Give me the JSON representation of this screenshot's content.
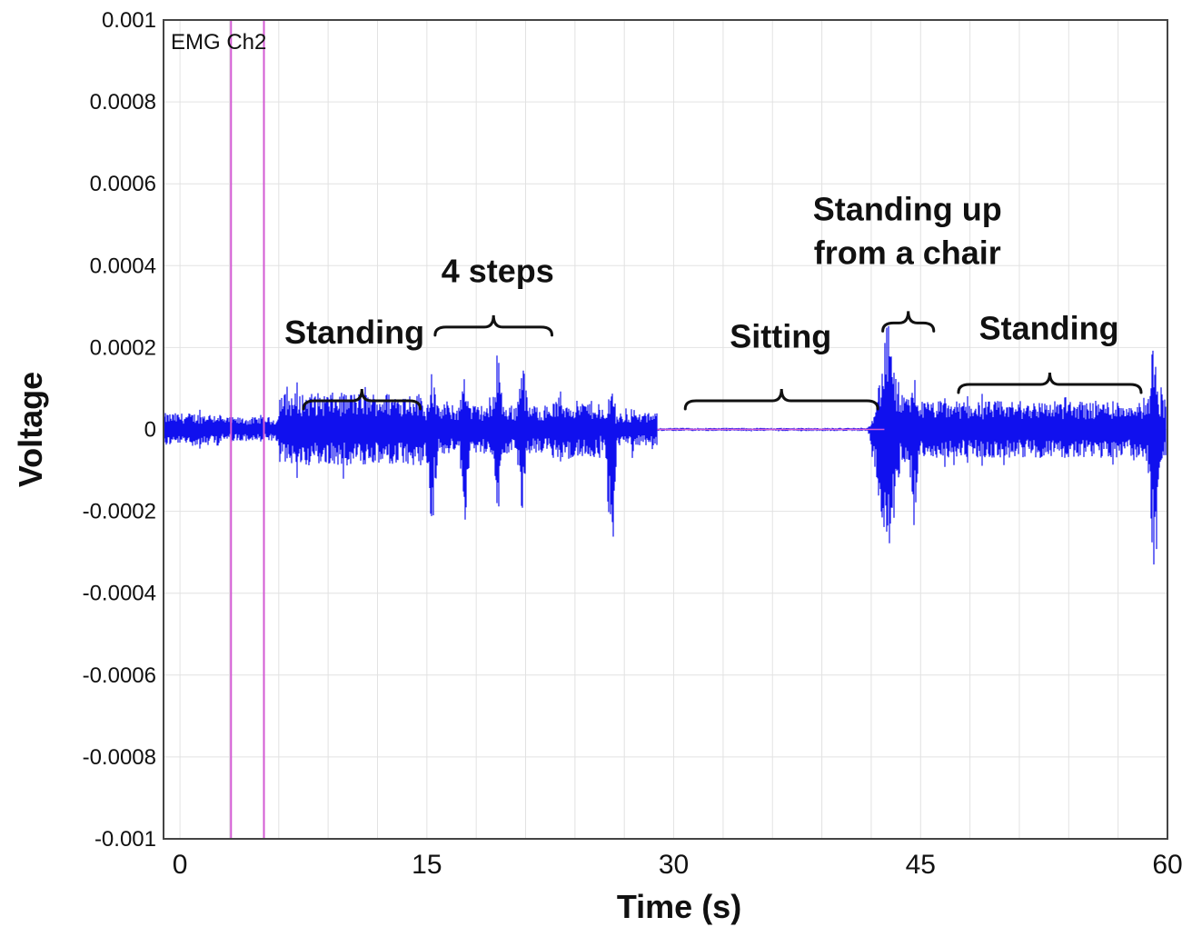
{
  "chart_data": {
    "type": "line",
    "title": "",
    "xlabel": "Time (s)",
    "ylabel": "Voltage",
    "channel_label": "EMG Ch2",
    "xlim": [
      -1,
      60
    ],
    "ylim": [
      -0.001,
      0.001
    ],
    "x_ticks": [
      {
        "value": 0,
        "label": "0"
      },
      {
        "value": 15,
        "label": "15"
      },
      {
        "value": 30,
        "label": "30"
      },
      {
        "value": 45,
        "label": "45"
      },
      {
        "value": 60,
        "label": "60"
      }
    ],
    "y_ticks": [
      {
        "value": 0.001,
        "label": "0.001"
      },
      {
        "value": 0.0008,
        "label": "0.0008"
      },
      {
        "value": 0.0006,
        "label": "0.0006"
      },
      {
        "value": 0.0004,
        "label": "0.0004"
      },
      {
        "value": 0.0002,
        "label": "0.0002"
      },
      {
        "value": 0,
        "label": "0"
      },
      {
        "value": -0.0002,
        "label": "-0.0002"
      },
      {
        "value": -0.0004,
        "label": "-0.0004"
      },
      {
        "value": -0.0006,
        "label": "-0.0006"
      },
      {
        "value": -0.0008,
        "label": "-0.0008"
      },
      {
        "value": -0.001,
        "label": "-0.001"
      }
    ],
    "grid": true,
    "x_grid_step": 3,
    "series": [
      {
        "color": "#1010ee",
        "segments": [
          {
            "x_start": -1,
            "x_end": 2.5,
            "amplitude": 4e-05
          },
          {
            "x_start": 2.5,
            "x_end": 6.0,
            "amplitude": 3e-05
          },
          {
            "x_start": 6.0,
            "x_end": 14.8,
            "amplitude": 9e-05
          },
          {
            "x_start": 14.8,
            "x_end": 22.5,
            "amplitude": 6e-05
          },
          {
            "x_start": 22.5,
            "x_end": 25.5,
            "amplitude": 7e-05
          },
          {
            "x_start": 25.5,
            "x_end": 29.0,
            "amplitude": 4e-05
          },
          {
            "x_start": 29.0,
            "x_end": 42.8,
            "amplitude": 4e-06
          },
          {
            "x_start": 42.8,
            "x_end": 45.0,
            "amplitude": 8e-05
          },
          {
            "x_start": 45.0,
            "x_end": 58.5,
            "amplitude": 7e-05
          },
          {
            "x_start": 58.5,
            "x_end": 60.0,
            "amplitude": 8e-05
          }
        ],
        "bursts": [
          {
            "x": 15.3,
            "width": 0.6,
            "peak_pos": 0.00018,
            "peak_neg": -0.0003
          },
          {
            "x": 17.3,
            "width": 0.6,
            "peak_pos": 0.00018,
            "peak_neg": -0.00025
          },
          {
            "x": 19.3,
            "width": 0.6,
            "peak_pos": 0.00023,
            "peak_neg": -0.00022
          },
          {
            "x": 20.8,
            "width": 0.6,
            "peak_pos": 0.00022,
            "peak_neg": -0.00027
          },
          {
            "x": 26.2,
            "width": 0.5,
            "peak_pos": 0.00015,
            "peak_neg": -0.00044
          },
          {
            "x": 27.5,
            "width": 0.4,
            "peak_pos": 8e-05,
            "peak_neg": -8e-05
          },
          {
            "x": 43.0,
            "width": 1.3,
            "peak_pos": 0.00027,
            "peak_neg": -0.0004
          },
          {
            "x": 44.6,
            "width": 0.6,
            "peak_pos": 0.00015,
            "peak_neg": -0.00025
          },
          {
            "x": 59.2,
            "width": 0.6,
            "peak_pos": 0.0003,
            "peak_neg": -0.00046
          }
        ]
      }
    ],
    "markers": [
      {
        "x": 3.1,
        "color": "#d35ad3"
      },
      {
        "x": 5.1,
        "color": "#d35ad3"
      }
    ],
    "baseline_color": "#d35ad3",
    "annotations": [
      {
        "lines": [
          "Standing"
        ],
        "text_x": 10.6,
        "text_y": 0.00021,
        "brace_x1": 7.5,
        "brace_x2": 14.6,
        "brace_y": 7e-05,
        "brace_dir": "up"
      },
      {
        "lines": [
          "4 steps"
        ],
        "text_x": 19.3,
        "text_y": 0.00036,
        "brace_x1": 15.5,
        "brace_x2": 22.6,
        "brace_y": 0.00025,
        "brace_dir": "down"
      },
      {
        "lines": [
          "Sitting"
        ],
        "text_x": 36.5,
        "text_y": 0.0002,
        "brace_x1": 30.7,
        "brace_x2": 42.4,
        "brace_y": 7e-05,
        "brace_dir": "up"
      },
      {
        "lines": [
          "Standing up",
          "from a chair"
        ],
        "text_x": 44.2,
        "text_y": 0.00051,
        "brace_x1": 42.7,
        "brace_x2": 45.8,
        "brace_y": 0.00026,
        "brace_dir": "down"
      },
      {
        "lines": [
          "Standing"
        ],
        "text_x": 52.8,
        "text_y": 0.00022,
        "brace_x1": 47.3,
        "brace_x2": 58.4,
        "brace_y": 0.00011,
        "brace_dir": "up"
      }
    ]
  }
}
